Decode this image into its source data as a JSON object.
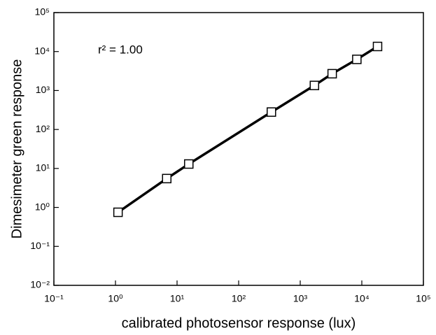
{
  "chart_data": {
    "type": "line",
    "x_label": "calibrated photosensor response (lux)",
    "y_label": "Dimesimeter green response",
    "annotation": "r² = 1.00",
    "xscale": "log",
    "yscale": "log",
    "xlim": [
      0.1,
      100000
    ],
    "ylim": [
      0.01,
      100000
    ],
    "xticks": [
      {
        "value": 0.1,
        "label": "10⁻¹"
      },
      {
        "value": 1,
        "label": "10⁰"
      },
      {
        "value": 10,
        "label": "10¹"
      },
      {
        "value": 100,
        "label": "10²"
      },
      {
        "value": 1000,
        "label": "10³"
      },
      {
        "value": 10000,
        "label": "10⁴"
      },
      {
        "value": 100000,
        "label": "10⁵"
      }
    ],
    "yticks": [
      {
        "value": 0.01,
        "label": "10⁻²"
      },
      {
        "value": 0.1,
        "label": "10⁻¹"
      },
      {
        "value": 1,
        "label": "10⁰"
      },
      {
        "value": 10,
        "label": "10¹"
      },
      {
        "value": 100,
        "label": "10²"
      },
      {
        "value": 1000,
        "label": "10³"
      },
      {
        "value": 10000,
        "label": "10⁴"
      },
      {
        "value": 100000,
        "label": "10⁵"
      }
    ],
    "color": "#000000",
    "x": [
      1.1,
      6.8,
      15.5,
      340,
      1700,
      3300,
      8300,
      18000
    ],
    "values": [
      0.75,
      5.5,
      13,
      280,
      1350,
      2700,
      6300,
      13500
    ]
  }
}
